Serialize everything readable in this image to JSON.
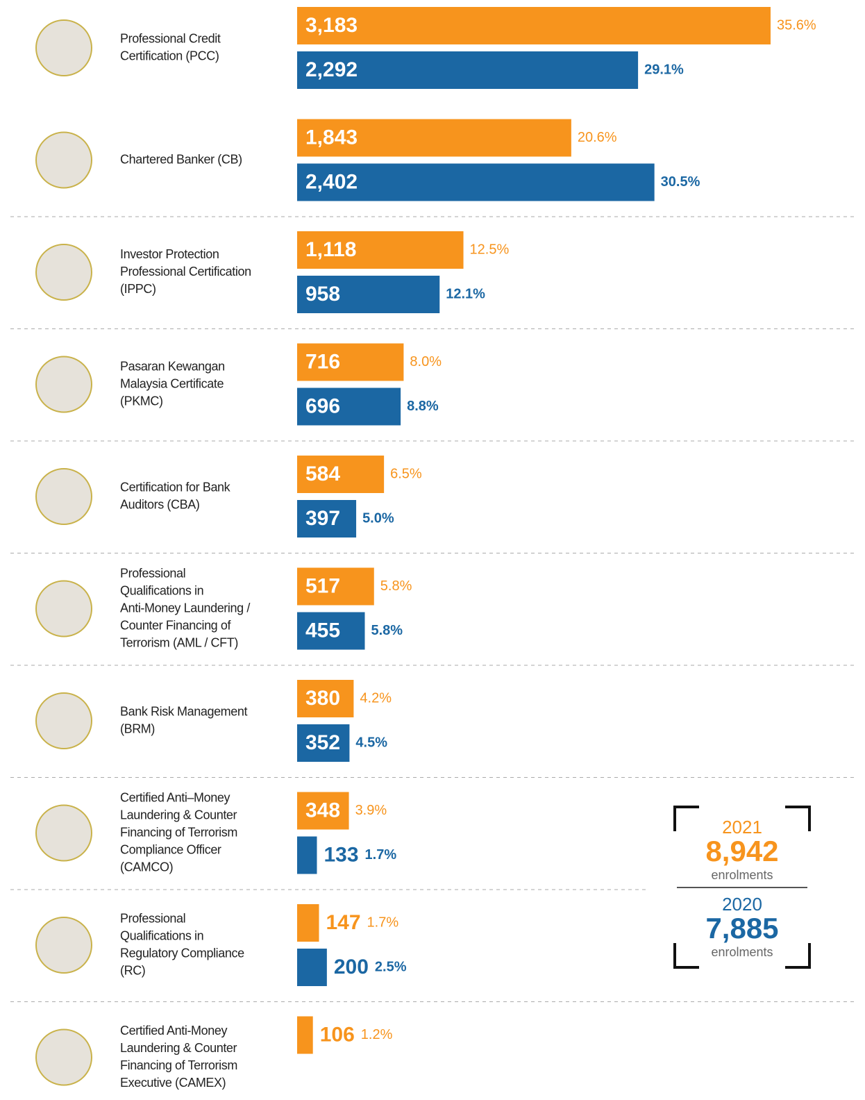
{
  "chart_data": {
    "type": "bar",
    "orientation": "horizontal",
    "categories": [
      [
        "Professional Credit",
        "Certification (PCC)"
      ],
      [
        "Chartered Banker (CB)"
      ],
      [
        "Investor Protection",
        "Professional Certification",
        "(IPPC)"
      ],
      [
        "Pasaran Kewangan",
        "Malaysia Certificate",
        "(PKMC)"
      ],
      [
        "Certification for Bank",
        "Auditors (CBA)"
      ],
      [
        "Professional",
        "Qualifications in",
        "Anti-Money Laundering /",
        "Counter Financing of",
        "Terrorism (AML / CFT)"
      ],
      [
        "Bank Risk Management",
        "(BRM)"
      ],
      [
        "Certified Anti–Money",
        "Laundering & Counter",
        "Financing of Terrorism",
        "Compliance Officer",
        "(CAMCO)"
      ],
      [
        "Professional",
        "Qualifications in",
        "Regulatory Compliance",
        "(RC)"
      ],
      [
        "Certified Anti-Money",
        "Laundering & Counter",
        "Financing of Terrorism",
        "Executive (CAMEX)"
      ]
    ],
    "series": [
      {
        "name": "2021",
        "color": "#f7941d",
        "values": [
          3183,
          1843,
          1118,
          716,
          584,
          517,
          380,
          348,
          147,
          106
        ],
        "value_labels": [
          "3,183",
          "1,843",
          "1,118",
          "716",
          "584",
          "517",
          "380",
          "348",
          "147",
          "106"
        ],
        "shares": [
          35.6,
          20.6,
          12.5,
          8.0,
          6.5,
          5.8,
          4.2,
          3.9,
          1.7,
          1.2
        ],
        "share_labels": [
          "35.6%",
          "20.6%",
          "12.5%",
          "8.0%",
          "6.5%",
          "5.8%",
          "4.2%",
          "3.9%",
          "1.7%",
          "1.2%"
        ]
      },
      {
        "name": "2020",
        "color": "#1b67a3",
        "values": [
          2292,
          2402,
          958,
          696,
          397,
          455,
          352,
          133,
          200,
          null
        ],
        "value_labels": [
          "2,292",
          "2,402",
          "958",
          "696",
          "397",
          "455",
          "352",
          "133",
          "200",
          null
        ],
        "shares": [
          29.1,
          30.5,
          12.1,
          8.8,
          5.0,
          5.8,
          4.5,
          1.7,
          2.5,
          null
        ],
        "share_labels": [
          "29.1%",
          "30.5%",
          "12.1%",
          "8.8%",
          "5.0%",
          "5.8%",
          "4.5%",
          "1.7%",
          "2.5%",
          null
        ]
      }
    ],
    "totals": [
      {
        "value": 8942,
        "label": "8,942",
        "unit": "enrolments"
      },
      {
        "value": 7885,
        "label": "7,885",
        "unit": "enrolments"
      }
    ]
  }
}
